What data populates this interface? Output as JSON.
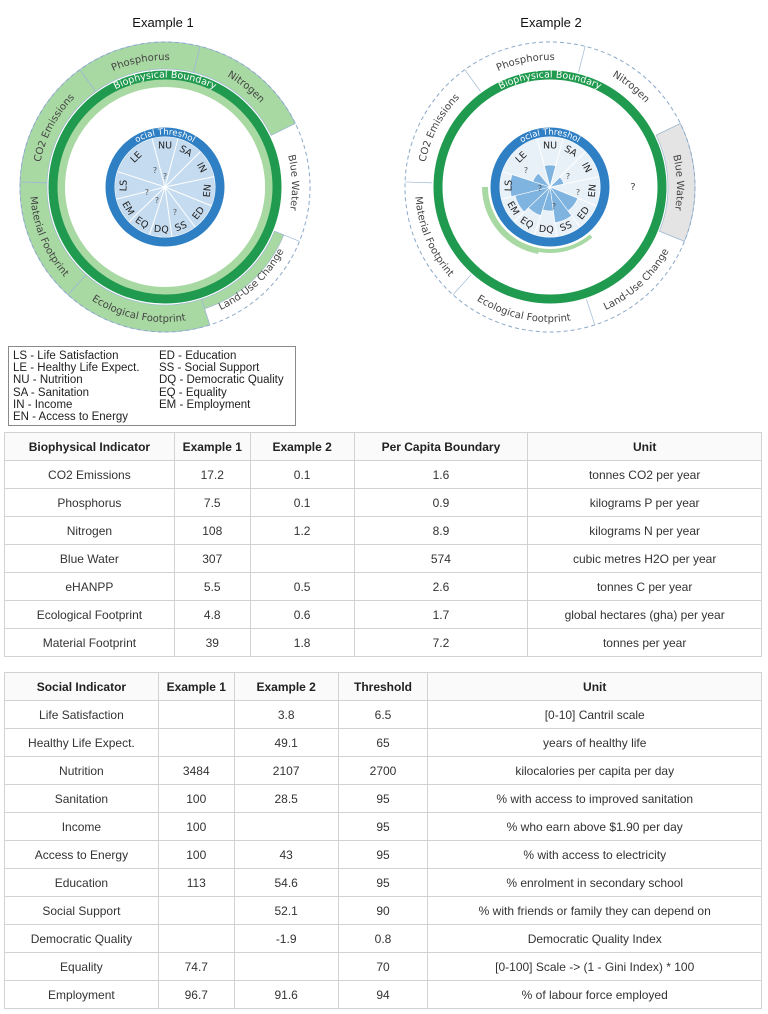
{
  "diagrams": [
    {
      "title": "Example 1",
      "biophysical_label": "Biophysical Boundary",
      "social_label": "Social Threshold",
      "outer_sectors": [
        "Phosphorus",
        "Nitrogen",
        "Blue Water",
        "Land-Use Change",
        "Ecological Footprint",
        "Material Footprint",
        "CO2 Emissions"
      ],
      "inner_labels": [
        "NU",
        "SA",
        "IN",
        "EN",
        "ED",
        "SS",
        "DQ",
        "EQ",
        "EM",
        "LS",
        "LE"
      ],
      "missing_marks": [
        "?",
        "?",
        "?",
        "?",
        "?"
      ]
    },
    {
      "title": "Example 2",
      "biophysical_label": "Biophysical Boundary",
      "social_label": "Social Threshold",
      "outer_sectors": [
        "Phosphorus",
        "Nitrogen",
        "Blue Water",
        "Land-Use Change",
        "Ecological Footprint",
        "Material Footprint",
        "CO2 Emissions"
      ],
      "inner_labels": [
        "NU",
        "SA",
        "IN",
        "EN",
        "ED",
        "SS",
        "DQ",
        "EQ",
        "EM",
        "LS",
        "LE"
      ],
      "missing_marks": [
        "?",
        "?",
        "?",
        "?",
        "?"
      ]
    }
  ],
  "legend": {
    "left": [
      "LS - Life Satisfaction",
      "LE - Healthy Life Expect.",
      "NU - Nutrition",
      "SA - Sanitation",
      "IN - Income",
      "EN - Access to Energy"
    ],
    "right": [
      "ED - Education",
      "SS - Social Support",
      "DQ - Democratic Quality",
      "EQ - Equality",
      "EM - Employment"
    ]
  },
  "bio_table": {
    "headers": [
      "Biophysical Indicator",
      "Example 1",
      "Example 2",
      "Per Capita Boundary",
      "Unit"
    ],
    "rows": [
      [
        "CO2 Emissions",
        "17.2",
        "0.1",
        "1.6",
        "tonnes CO2 per year"
      ],
      [
        "Phosphorus",
        "7.5",
        "0.1",
        "0.9",
        "kilograms P per year"
      ],
      [
        "Nitrogen",
        "108",
        "1.2",
        "8.9",
        "kilograms N per year"
      ],
      [
        "Blue Water",
        "307",
        "",
        "574",
        "cubic metres H2O per year"
      ],
      [
        "eHANPP",
        "5.5",
        "0.5",
        "2.6",
        "tonnes C per year"
      ],
      [
        "Ecological Footprint",
        "4.8",
        "0.6",
        "1.7",
        "global hectares (gha) per year"
      ],
      [
        "Material Footprint",
        "39",
        "1.8",
        "7.2",
        "tonnes per year"
      ]
    ]
  },
  "social_table": {
    "headers": [
      "Social Indicator",
      "Example 1",
      "Example 2",
      "Threshold",
      "Unit"
    ],
    "rows": [
      [
        "Life Satisfaction",
        "",
        "3.8",
        "6.5",
        "[0-10] Cantril scale"
      ],
      [
        "Healthy Life Expect.",
        "",
        "49.1",
        "65",
        "years of healthy life"
      ],
      [
        "Nutrition",
        "3484",
        "2107",
        "2700",
        "kilocalories per capita per day"
      ],
      [
        "Sanitation",
        "100",
        "28.5",
        "95",
        "% with access to improved sanitation"
      ],
      [
        "Income",
        "100",
        "",
        "95",
        "% who earn above $1.90 per day"
      ],
      [
        "Access to Energy",
        "100",
        "43",
        "95",
        "% with access to electricity"
      ],
      [
        "Education",
        "113",
        "54.6",
        "95",
        "% enrolment in secondary school"
      ],
      [
        "Social Support",
        "",
        "52.1",
        "90",
        "% with friends or family they can depend on"
      ],
      [
        "Democratic Quality",
        "",
        "-1.9",
        "0.8",
        "Democratic Quality Index"
      ],
      [
        "Equality",
        "74.7",
        "",
        "70",
        "[0-100] Scale -> (1 - Gini Index) * 100"
      ],
      [
        "Employment",
        "96.7",
        "91.6",
        "94",
        "% of labour force employed"
      ]
    ]
  },
  "colors": {
    "overshoot_green": "#a9d9a3",
    "boundary_green": "#1f9a4e",
    "social_blue": "#2f7fc4",
    "inner_fill": "#c5dbef",
    "missing_gray": "#e4e4e4",
    "bar_blue": "#7fb3e0"
  }
}
